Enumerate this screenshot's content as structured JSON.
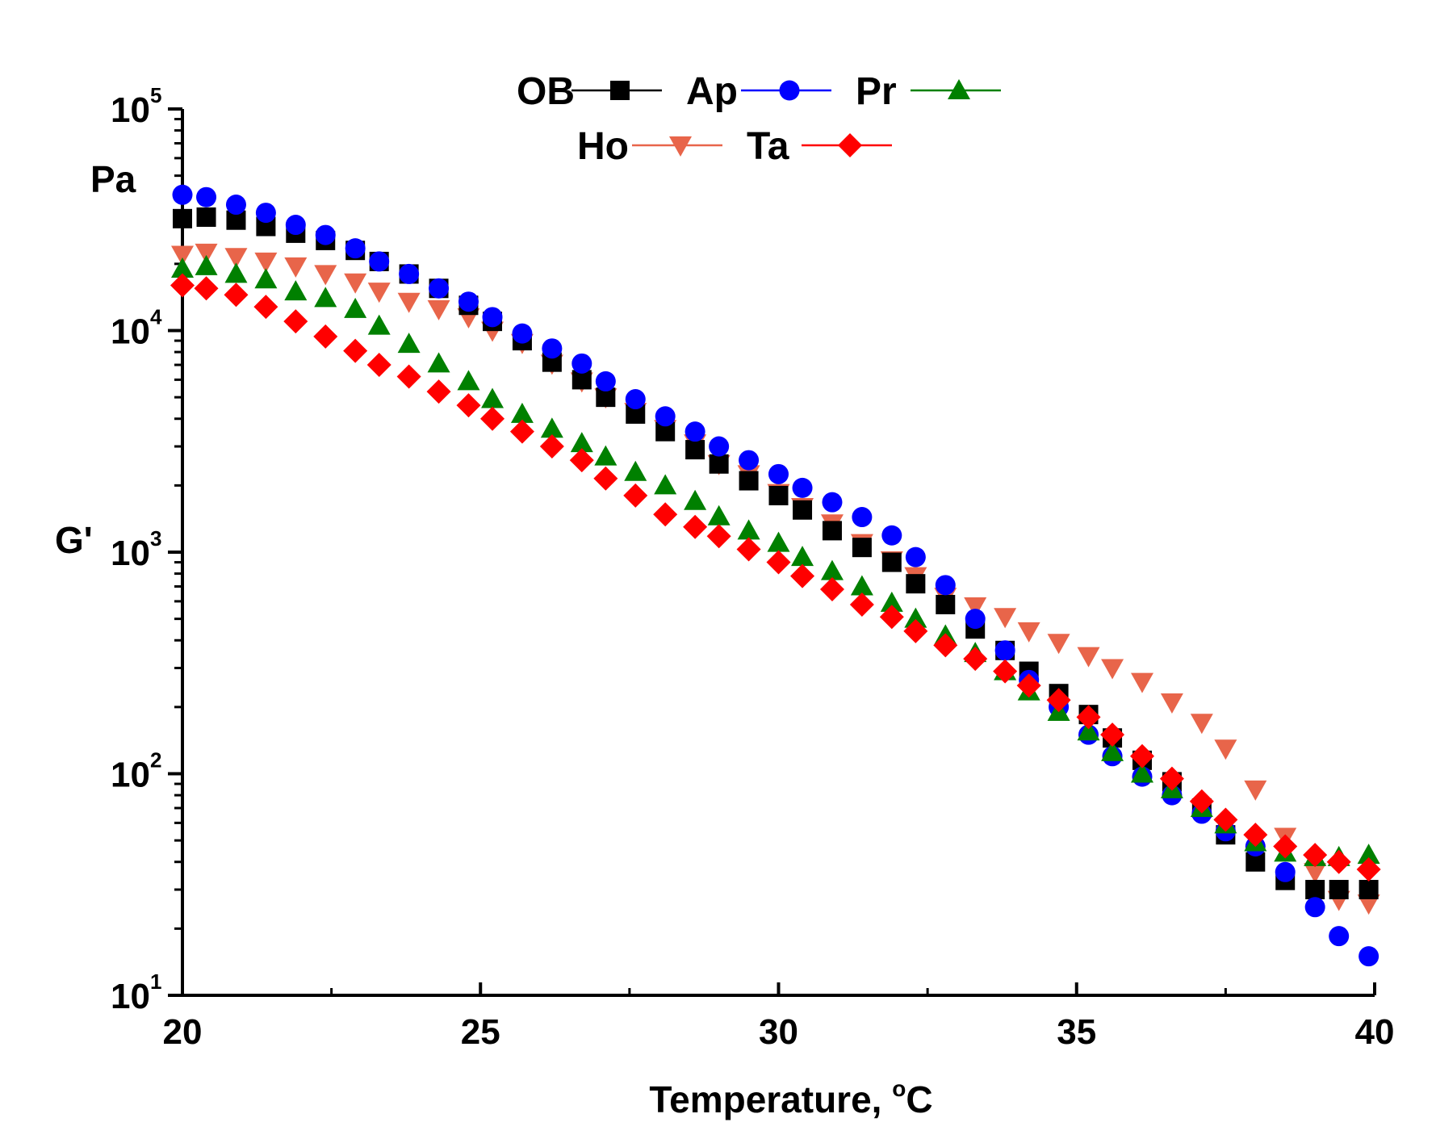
{
  "chart_data": {
    "type": "scatter",
    "title": "",
    "xlabel": "Temperature, °C",
    "xlabel_parts": {
      "main": "Temperature, ",
      "sup": "o",
      "tail": "C"
    },
    "ylabel": "G'",
    "yunit": "Pa",
    "xlim": [
      20,
      40
    ],
    "ylim": [
      10,
      100000
    ],
    "yscale": "log",
    "grid": false,
    "legend_position": "top-center",
    "x_ticks": [
      {
        "value": 20,
        "label": "20"
      },
      {
        "value": 25,
        "label": "25"
      },
      {
        "value": 30,
        "label": "30"
      },
      {
        "value": 35,
        "label": "35"
      },
      {
        "value": 40,
        "label": "40"
      }
    ],
    "y_ticks": [
      {
        "value": 10,
        "base": "10",
        "exp": "1"
      },
      {
        "value": 100,
        "base": "10",
        "exp": "2"
      },
      {
        "value": 1000,
        "base": "10",
        "exp": "3"
      },
      {
        "value": 10000,
        "base": "10",
        "exp": "4"
      },
      {
        "value": 100000,
        "base": "10",
        "exp": "5"
      }
    ],
    "x": [
      20,
      20.4,
      20.9,
      21.4,
      21.9,
      22.4,
      22.9,
      23.3,
      23.8,
      24.3,
      24.8,
      25.2,
      25.7,
      26.2,
      26.7,
      27.1,
      27.6,
      28.1,
      28.6,
      29,
      29.5,
      30,
      30.4,
      30.9,
      31.4,
      31.9,
      32.3,
      32.8,
      33.3,
      33.8,
      34.2,
      34.7,
      35.2,
      35.6,
      36.1,
      36.6,
      37.1,
      37.5,
      38,
      38.5,
      39,
      39.4,
      39.9
    ],
    "series": [
      {
        "name": "OB",
        "marker": "square",
        "color": "#000000",
        "values": [
          32000,
          32500,
          31500,
          29500,
          27500,
          25500,
          23000,
          20500,
          18000,
          15500,
          13000,
          11000,
          9000,
          7200,
          6000,
          5000,
          4200,
          3500,
          2900,
          2500,
          2100,
          1800,
          1550,
          1250,
          1050,
          900,
          720,
          580,
          450,
          360,
          290,
          230,
          185,
          145,
          115,
          92,
          70,
          53,
          40,
          33,
          30,
          30,
          30
        ]
      },
      {
        "name": "Ap",
        "marker": "circle",
        "color": "#0000ff",
        "values": [
          41000,
          40000,
          37000,
          34000,
          30000,
          27000,
          23500,
          20500,
          18000,
          15500,
          13500,
          11500,
          9700,
          8300,
          7100,
          5900,
          4900,
          4100,
          3500,
          3000,
          2600,
          2250,
          1950,
          1680,
          1440,
          1190,
          950,
          710,
          500,
          360,
          265,
          200,
          150,
          120,
          97,
          80,
          66,
          55,
          47,
          36,
          25,
          18.5,
          15
        ]
      },
      {
        "name": "Pr",
        "marker": "triangle-up",
        "color": "#008000",
        "values": [
          19000,
          19500,
          18000,
          17000,
          15000,
          14000,
          12500,
          10500,
          8700,
          7100,
          5900,
          4900,
          4200,
          3600,
          3100,
          2700,
          2300,
          2000,
          1700,
          1450,
          1250,
          1100,
          950,
          820,
          700,
          590,
          500,
          420,
          350,
          290,
          235,
          190,
          155,
          125,
          100,
          85,
          70,
          59,
          49,
          44,
          42,
          42,
          43
        ]
      },
      {
        "name": "Ho",
        "marker": "triangle-down",
        "color": "#e8654a",
        "values": [
          22000,
          22500,
          21500,
          20500,
          19500,
          18000,
          16500,
          15000,
          13500,
          12500,
          11500,
          10000,
          8800,
          7100,
          5900,
          5000,
          4300,
          3600,
          3100,
          2500,
          2250,
          1850,
          1600,
          1350,
          1100,
          920,
          780,
          630,
          570,
          510,
          440,
          390,
          340,
          300,
          260,
          210,
          170,
          130,
          85,
          52,
          36,
          27,
          26
        ]
      },
      {
        "name": "Ta",
        "marker": "diamond",
        "color": "#ff0000",
        "values": [
          16000,
          15500,
          14500,
          12800,
          11000,
          9400,
          8100,
          7000,
          6200,
          5300,
          4600,
          4000,
          3500,
          3000,
          2600,
          2150,
          1800,
          1480,
          1300,
          1180,
          1030,
          900,
          780,
          680,
          580,
          510,
          440,
          380,
          330,
          290,
          250,
          215,
          180,
          150,
          120,
          95,
          75,
          62,
          53,
          47,
          43,
          40,
          37
        ]
      }
    ]
  }
}
